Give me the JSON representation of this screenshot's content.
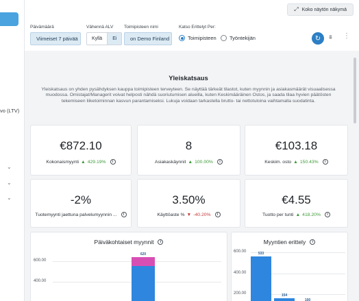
{
  "sidebar": {
    "ltv_label": "vo (LTV)",
    "chevrons": [
      "⌄",
      "⌄",
      "⌄"
    ]
  },
  "topbar": {
    "fullscreen_label": "Koko näytön näkymä"
  },
  "filters": {
    "date_label": "Päivämäärä",
    "date_value": "Viimeiset 7 päivää",
    "vat_label": "Vähennä ALV",
    "vat_yes": "Kyllä",
    "vat_no": "Ei",
    "store_label": "Toimipisteen nimi",
    "store_value": "on Demo Finland",
    "breakdown_label": "Katso Erittelyt Per:",
    "radio_store": "Toimipisteen",
    "radio_employee": "Työntekijän"
  },
  "overview": {
    "title": "Yleiskatsaus",
    "text": "Yleiskatsaus on yhden pysähdyksen kauppa toimipisteen terveyteen. Se näyttää tärkeät tilastot, kuten myynnin ja asiakasmäärät visuaalisessa muodossa. Omistajat/Managerit voivat helposti nähdä suoriutumisen alueilla, kuten Keskimääräinen Ostos, ja saada tilaa hyvien päätösten tekemiseen liiketoiminnan kasvun parantamiseksi. Lukuja voidaan tarkastella brutto- tai nettotuloina vaihtamalla suodatinta."
  },
  "kpis": [
    {
      "value": "€872.10",
      "label": "Kokonaismyynti",
      "delta": "429.19%",
      "direction": "up"
    },
    {
      "value": "8",
      "label": "Asiakaskäynnit",
      "delta": "100.00%",
      "direction": "up"
    },
    {
      "value": "€103.18",
      "label": "Keskim. osto",
      "delta": "150.43%",
      "direction": "up"
    },
    {
      "value": "-2%",
      "label": "Tuotemyynti jaettuna palvelumyynnin ...",
      "delta": "",
      "direction": "none"
    },
    {
      "value": "3.50%",
      "label": "Käyttöaste %",
      "delta": "-40.20%",
      "direction": "down"
    },
    {
      "value": "€4.55",
      "label": "Tuotto per tunti",
      "delta": "418.20%",
      "direction": "up"
    }
  ],
  "chart_data": [
    {
      "type": "bar",
      "title": "Päiväkohtaiset myynnit",
      "yticks": [
        "600.00",
        "400.00"
      ],
      "values": [
        620
      ],
      "data_labels": [
        "620"
      ],
      "colors": [
        "#2e86de",
        "#d84fb4"
      ]
    },
    {
      "type": "bar",
      "title": "Myyntien erittely",
      "yticks": [
        "600.00",
        "400.00",
        "200.00"
      ],
      "values": [
        533,
        154,
        100
      ],
      "data_labels": [
        "533",
        "154",
        "100"
      ],
      "colors": [
        "#2e86de"
      ]
    }
  ],
  "icons": {
    "fullscreen": "⤢",
    "refresh": "↻",
    "filter": "⩩",
    "kebab": "⋮",
    "info": "i",
    "up_arrow": "▲",
    "down_arrow": "▼"
  }
}
